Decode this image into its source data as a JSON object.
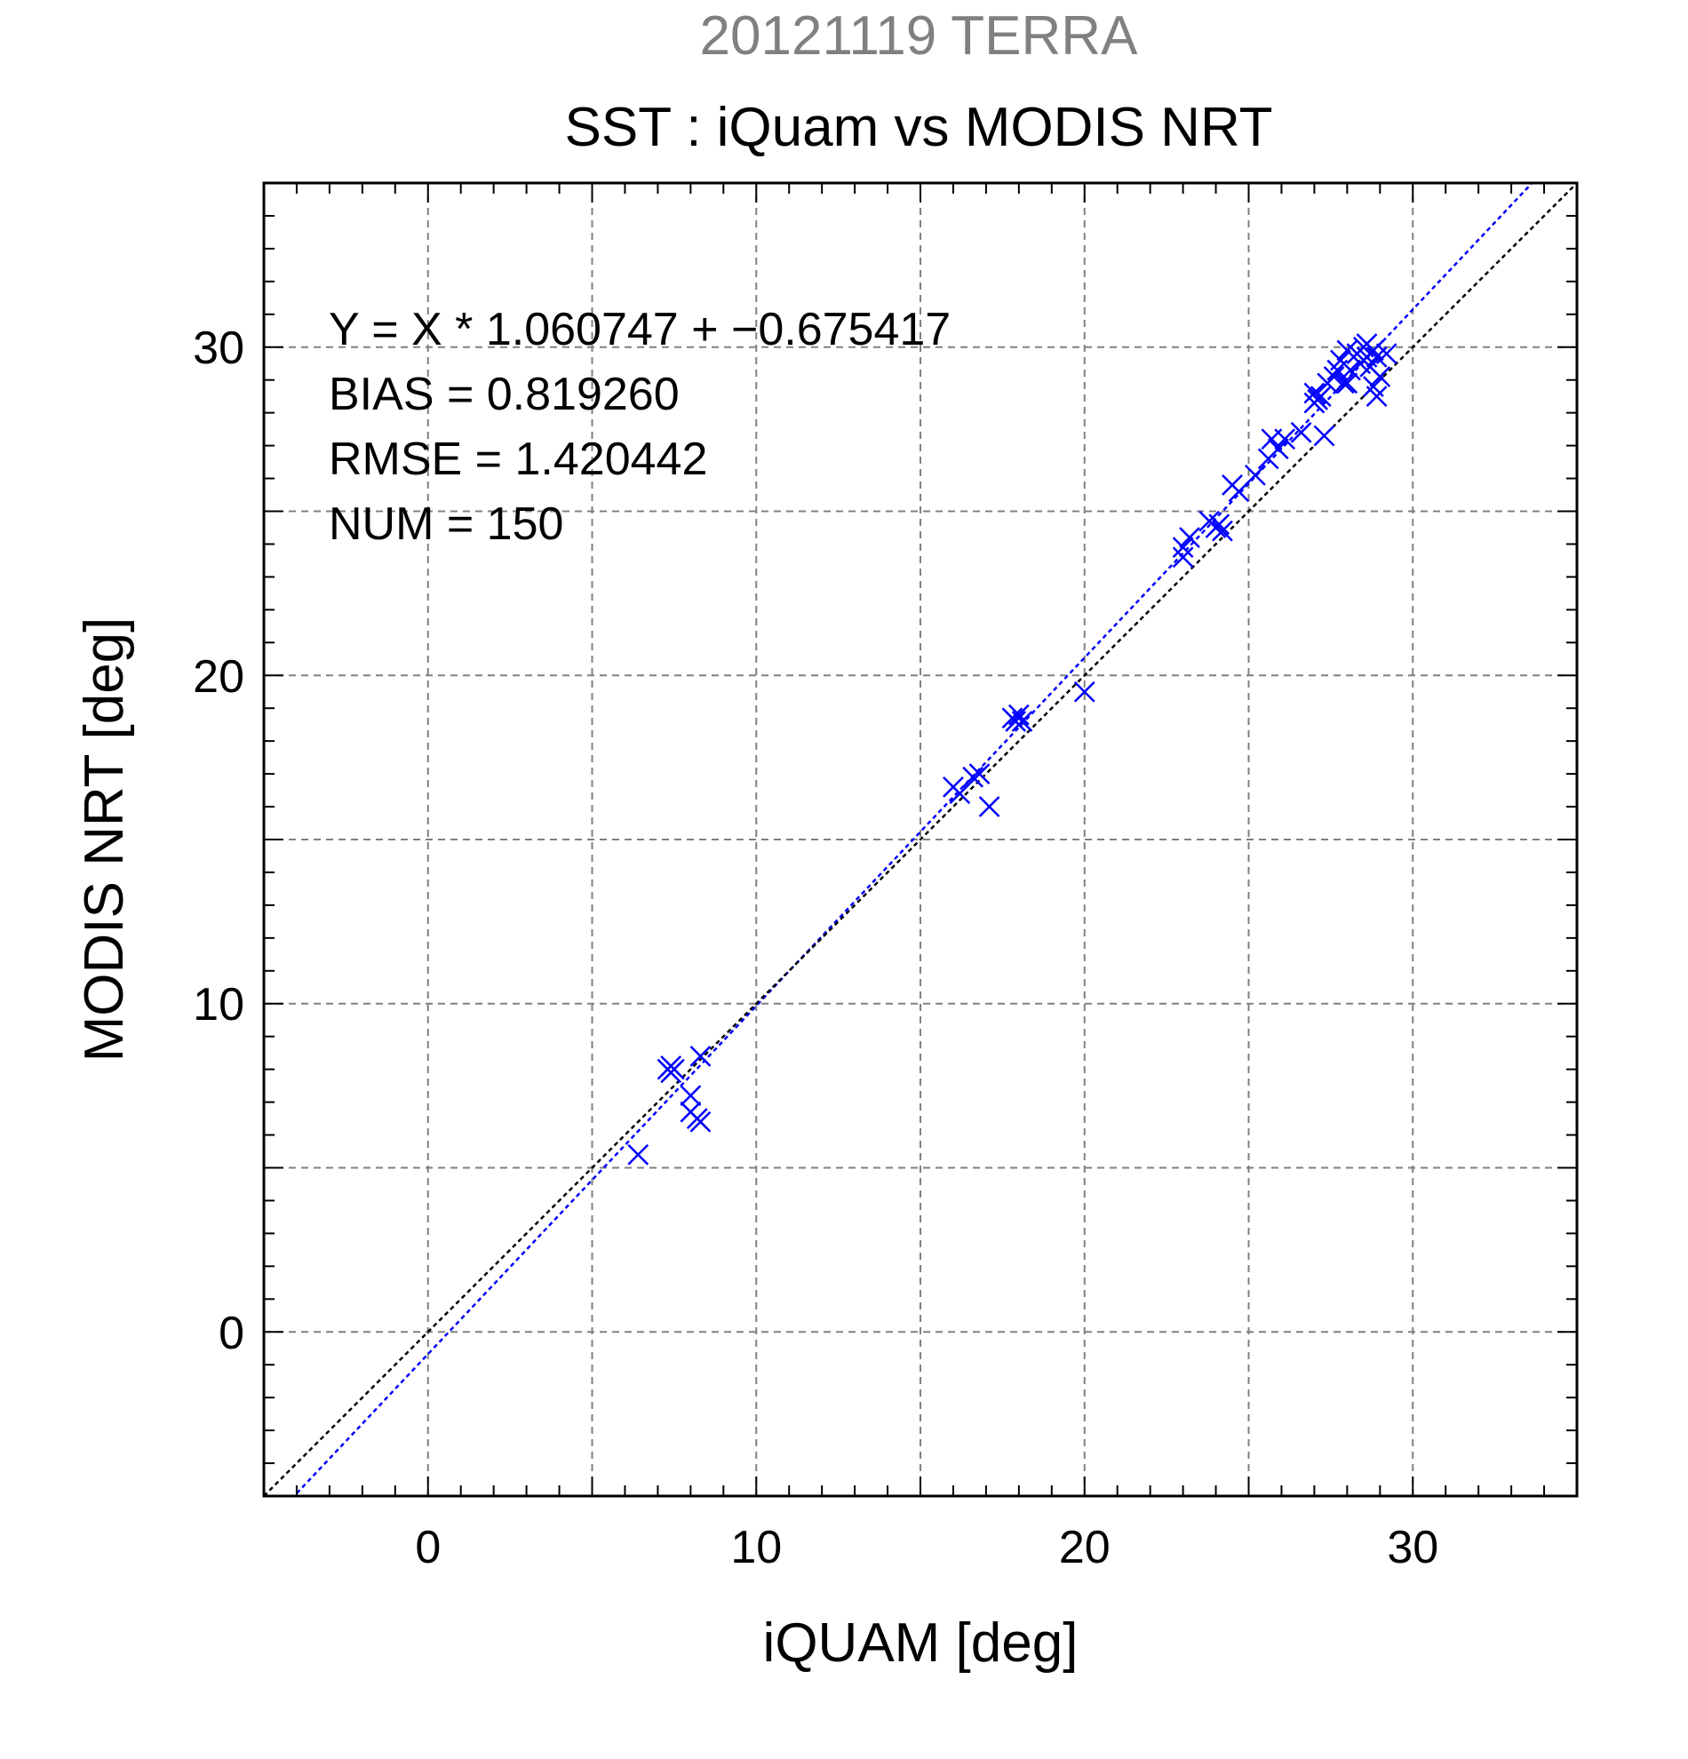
{
  "colors": {
    "points": "#0000ff",
    "fit_line": "#0000ff",
    "identity_line": "#000000",
    "grid": "#808080",
    "subtitle": "#808080"
  },
  "chart_data": {
    "type": "scatter",
    "subtitle": "20121119 TERRA",
    "title": "SST : iQuam vs MODIS NRT",
    "xlabel": "iQUAM [deg]",
    "ylabel": "MODIS NRT [deg]",
    "xlim": [
      -5,
      35
    ],
    "ylim": [
      -5,
      35
    ],
    "xticks": [
      0,
      10,
      20,
      30
    ],
    "yticks": [
      0,
      10,
      20,
      30
    ],
    "grid": true,
    "marker": "x",
    "stats": {
      "equation": "Y = X * 1.060747 + −0.675417",
      "bias": "BIAS = 0.819260",
      "rmse": "RMSE = 1.420442",
      "num": "NUM = 150"
    },
    "lines": [
      {
        "kind": "fit",
        "slope": 1.060747,
        "intercept": -0.675417,
        "style": "dotted"
      },
      {
        "kind": "identity",
        "slope": 1,
        "intercept": 0,
        "style": "dotted"
      }
    ],
    "points": [
      [
        6.4,
        5.4
      ],
      [
        7.3,
        8.0
      ],
      [
        7.4,
        8.1
      ],
      [
        7.5,
        8.0
      ],
      [
        7.4,
        7.9
      ],
      [
        8.0,
        7.2
      ],
      [
        8.0,
        6.7
      ],
      [
        8.2,
        6.5
      ],
      [
        8.3,
        6.4
      ],
      [
        8.3,
        8.4
      ],
      [
        16.0,
        16.6
      ],
      [
        16.2,
        16.4
      ],
      [
        16.6,
        16.9
      ],
      [
        16.8,
        17.0
      ],
      [
        17.1,
        16.0
      ],
      [
        17.8,
        18.7
      ],
      [
        17.9,
        18.6
      ],
      [
        18.0,
        18.8
      ],
      [
        18.1,
        18.6
      ],
      [
        20.0,
        19.5
      ],
      [
        23.0,
        23.9
      ],
      [
        23.0,
        23.6
      ],
      [
        23.2,
        24.2
      ],
      [
        23.8,
        24.7
      ],
      [
        24.0,
        24.5
      ],
      [
        24.1,
        24.6
      ],
      [
        24.2,
        24.4
      ],
      [
        24.5,
        25.8
      ],
      [
        24.7,
        25.6
      ],
      [
        25.2,
        26.1
      ],
      [
        25.6,
        26.6
      ],
      [
        25.7,
        27.2
      ],
      [
        25.9,
        26.9
      ],
      [
        26.1,
        27.2
      ],
      [
        26.6,
        27.4
      ],
      [
        27.0,
        28.3
      ],
      [
        27.0,
        28.6
      ],
      [
        27.2,
        28.5
      ],
      [
        27.3,
        27.3
      ],
      [
        27.4,
        28.9
      ],
      [
        27.6,
        29.1
      ],
      [
        27.8,
        29.6
      ],
      [
        27.9,
        28.9
      ],
      [
        28.0,
        29.9
      ],
      [
        28.1,
        29.3
      ],
      [
        28.3,
        29.8
      ],
      [
        28.4,
        29.5
      ],
      [
        28.5,
        30.0
      ],
      [
        28.6,
        29.7
      ],
      [
        28.7,
        29.4
      ],
      [
        28.8,
        29.9
      ],
      [
        28.8,
        28.8
      ],
      [
        28.9,
        29.7
      ],
      [
        28.9,
        28.5
      ],
      [
        29.0,
        29.1
      ],
      [
        29.2,
        29.8
      ],
      [
        27.7,
        29.3
      ],
      [
        28.0,
        28.9
      ],
      [
        27.1,
        28.4
      ],
      [
        28.6,
        30.1
      ]
    ]
  }
}
